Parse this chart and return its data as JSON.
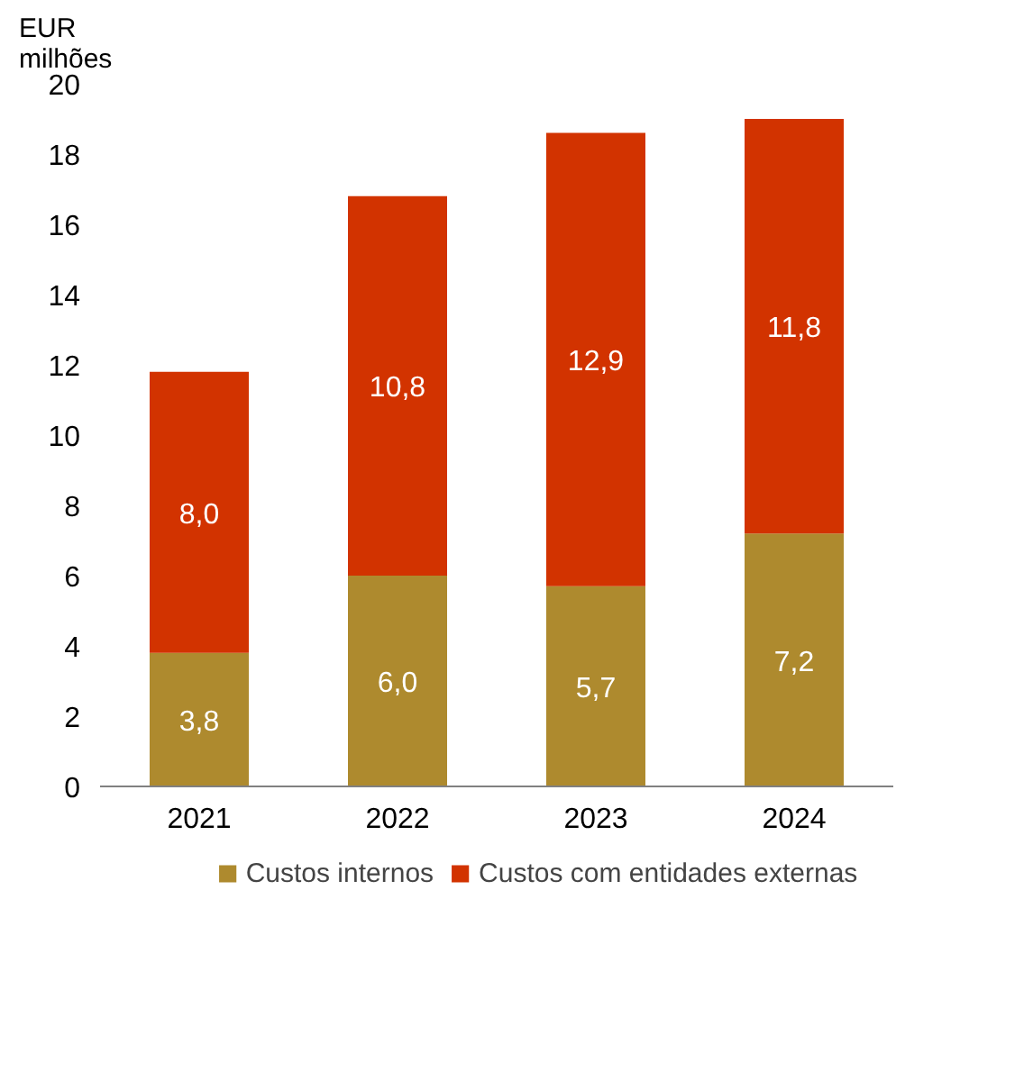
{
  "chart_data": {
    "type": "bar",
    "stacked": true,
    "ylabel": "EUR milhões",
    "categories": [
      "2021",
      "2022",
      "2023",
      "2024"
    ],
    "series": [
      {
        "name": "Custos internos",
        "color": "#ae8a2e",
        "values": [
          3.8,
          6.0,
          5.7,
          7.2
        ],
        "value_labels": [
          "3,8",
          "6,0",
          "5,7",
          "7,2"
        ]
      },
      {
        "name": "Custos com entidades externas",
        "color": "#d23300",
        "values": [
          8.0,
          10.8,
          12.9,
          11.8
        ],
        "value_labels": [
          "8,0",
          "10,8",
          "12,9",
          "11,8"
        ]
      }
    ],
    "ylim": [
      0,
      20
    ],
    "yticks": [
      0,
      2,
      4,
      6,
      8,
      10,
      12,
      14,
      16,
      18,
      20
    ],
    "grid": false,
    "legend": "bottom"
  }
}
